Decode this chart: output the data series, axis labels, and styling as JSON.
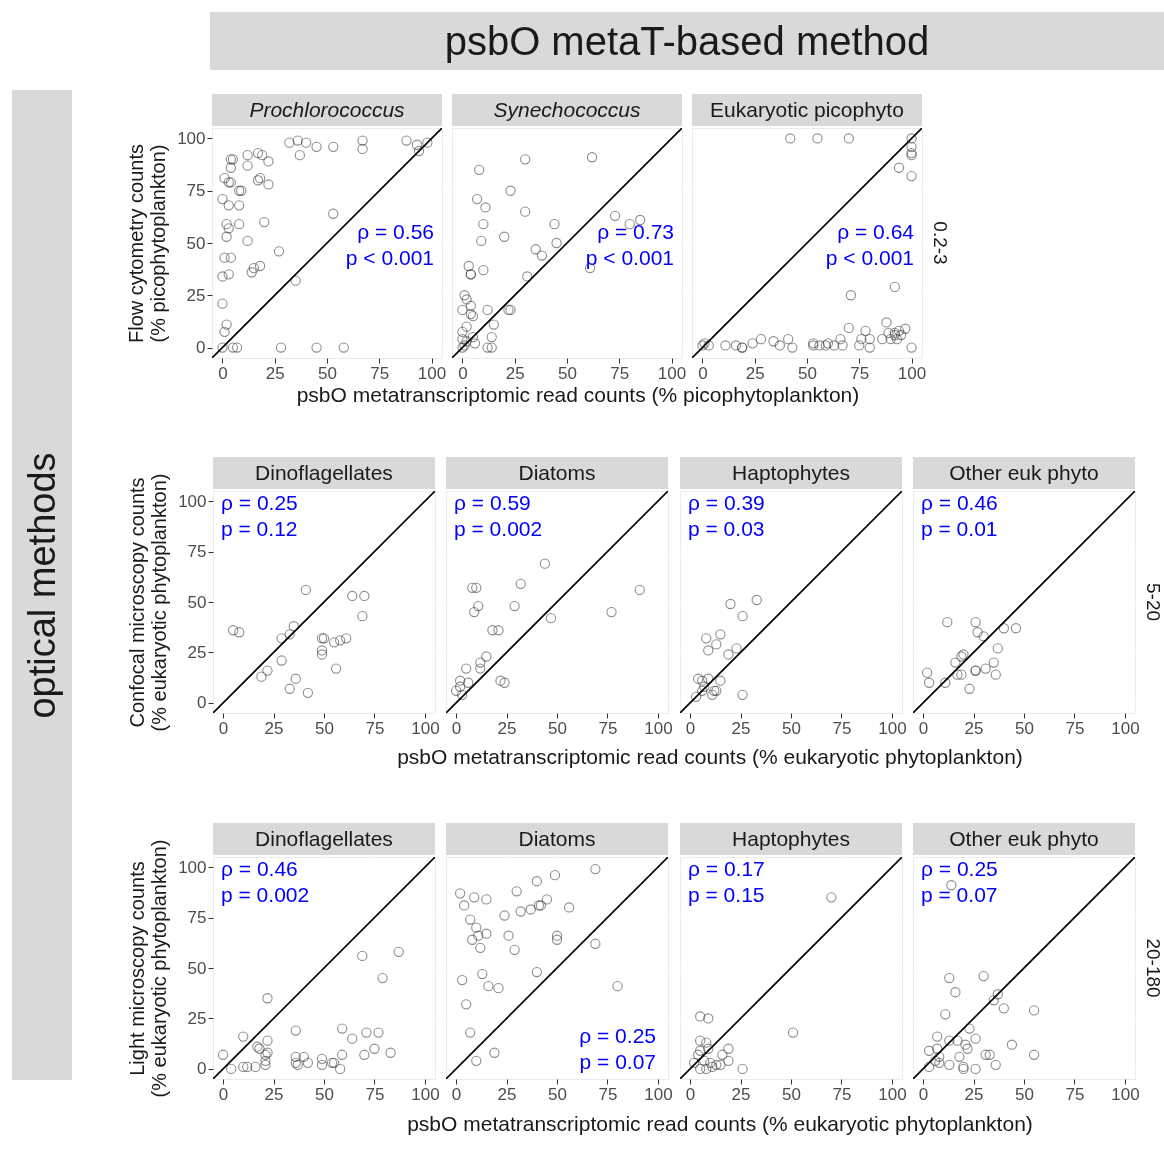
{
  "chart_data": [
    {
      "type": "scatter",
      "title": "Prochlorococcus",
      "ylabel": "Flow cytometry counts\n(% picophytoplankton)",
      "xlim": [
        -5,
        105
      ],
      "ylim": [
        -5,
        105
      ],
      "xticks": [
        0,
        25,
        50,
        75,
        100
      ],
      "yticks": [
        0,
        25,
        50,
        75,
        100
      ],
      "grid": true,
      "annotations": [
        "ρ = 0.56",
        "p < 0.001",
        "psbO metaT-based method"
      ],
      "series": [
        {
          "color": "#333333",
          "x": [
            0,
            5,
            7,
            28,
            45,
            58,
            1,
            2,
            0,
            0,
            3,
            1,
            4,
            14,
            15,
            18,
            27,
            35,
            12,
            20,
            8,
            2,
            3,
            2,
            0,
            3,
            8,
            1,
            3,
            4,
            8,
            9,
            4,
            4,
            5,
            12,
            12,
            17,
            19,
            22,
            17,
            18,
            22,
            32,
            36,
            37,
            40,
            45,
            53,
            53,
            67,
            67,
            88,
            93,
            94,
            98
          ],
          "values": [
            0,
            0,
            0,
            0,
            0,
            0,
            7.5,
            11,
            21,
            34,
            35,
            43,
            43,
            36,
            38,
            39,
            46,
            32,
            51,
            60,
            59,
            59,
            57,
            53,
            71,
            68,
            68,
            81,
            79,
            79,
            75,
            75,
            86,
            90,
            90,
            92,
            87,
            93,
            92,
            89,
            80,
            81,
            78,
            98,
            99,
            92,
            98,
            96,
            96,
            64,
            99,
            95,
            99,
            97,
            94,
            98
          ]
        },
        {
          "type": "line",
          "color": "#000000",
          "x": [
            -5,
            105
          ],
          "values": [
            -5,
            105
          ]
        }
      ]
    },
    {
      "type": "scatter",
      "title": "Synechococcus",
      "xlabel": "psbO metatranscriptomic read counts (% picophytoplankton)",
      "tick_labels": "x",
      "xlim": [
        -5,
        105
      ],
      "ylim": [
        -5,
        105
      ],
      "xticks": [
        0,
        25,
        50,
        75,
        100
      ],
      "yticks": [
        0,
        25,
        50,
        75,
        100
      ],
      "grid": true,
      "annotations": [
        "ρ = 0.73",
        "p < 0.001"
      ],
      "series": [
        {
          "color": "#333333",
          "x": [
            30,
            62,
            8,
            23,
            7,
            11,
            30,
            73,
            80,
            85,
            10,
            44,
            9,
            20,
            45,
            35,
            38,
            3,
            4,
            4,
            10,
            31,
            61,
            22,
            23,
            12,
            1,
            2,
            4,
            0,
            4,
            5,
            2,
            0,
            0,
            2,
            0,
            1,
            5,
            6,
            15,
            14,
            12,
            14
          ],
          "values": [
            90,
            91,
            85,
            75,
            71,
            67,
            65,
            63,
            59,
            61,
            59,
            59,
            51,
            53,
            50,
            47,
            44,
            39,
            35,
            35,
            37,
            34,
            38,
            18,
            18,
            18,
            25,
            23,
            20,
            18,
            16,
            15,
            10,
            7.5,
            4,
            3,
            0,
            1,
            5,
            2,
            11,
            5,
            0,
            0
          ]
        },
        {
          "type": "line",
          "color": "#000000",
          "x": [
            -5,
            105
          ],
          "values": [
            -5,
            105
          ]
        }
      ]
    },
    {
      "type": "scatter",
      "title": "Eukaryotic picophyto",
      "tick_labels": "x",
      "y2label": "0.2-3",
      "xlim": [
        -5,
        105
      ],
      "ylim": [
        -5,
        105
      ],
      "xticks": [
        0,
        25,
        50,
        75,
        100
      ],
      "yticks": [
        0,
        25,
        50,
        75,
        100
      ],
      "grid": true,
      "annotations": [
        "ρ = 0.64",
        "p < 0.001"
      ],
      "series": [
        {
          "color": "#333333",
          "x": [
            42,
            55,
            70,
            100,
            100,
            100,
            100,
            94,
            100,
            92,
            71,
            70,
            0,
            1,
            3,
            11,
            16,
            19,
            19,
            24,
            28,
            34,
            37,
            41,
            43,
            53,
            53,
            56,
            60,
            59,
            63,
            66,
            67,
            75,
            76,
            78,
            80,
            80,
            86,
            88,
            89,
            90,
            92,
            92,
            94,
            95,
            97,
            100,
            93
          ],
          "values": [
            100,
            100,
            100,
            100,
            96,
            93,
            92,
            86,
            82,
            29,
            25,
            9.4,
            1,
            2,
            1,
            1,
            1,
            0,
            0,
            2,
            4,
            3,
            1,
            4,
            0,
            2,
            1,
            1,
            2,
            1,
            1,
            4,
            1,
            1,
            4,
            8,
            4,
            0,
            4,
            12,
            7,
            4,
            6,
            7,
            8,
            6,
            9,
            0,
            4
          ]
        },
        {
          "type": "line",
          "color": "#000000",
          "x": [
            -5,
            105
          ],
          "values": [
            -5,
            105
          ]
        }
      ]
    },
    {
      "type": "scatter",
      "title": "Dinoflagellates",
      "ylabel": "Confocal microscopy counts\n(% eukaryotic phytoplankton)",
      "xlim": [
        -5,
        105
      ],
      "ylim": [
        -5,
        105
      ],
      "xticks": [
        0,
        25,
        50,
        75,
        100
      ],
      "yticks": [
        0,
        25,
        50,
        75,
        100
      ],
      "grid": true,
      "annotations": [
        "ρ = 0.25",
        "p = 0.12",
        "optical methods"
      ],
      "series": [
        {
          "color": "#333333",
          "x": [
            5,
            8,
            41,
            64,
            70,
            69,
            35,
            33,
            29,
            49,
            50,
            55,
            58,
            61,
            49,
            49,
            29,
            56,
            19,
            22,
            36,
            33,
            42
          ],
          "values": [
            36,
            35,
            56,
            53,
            53,
            43,
            38,
            34,
            32,
            32,
            32,
            30,
            31,
            32,
            26,
            24,
            21,
            17,
            13,
            16,
            12,
            7,
            5
          ]
        },
        {
          "type": "line",
          "color": "#000000",
          "x": [
            -5,
            105
          ],
          "values": [
            -5,
            105
          ]
        }
      ]
    },
    {
      "type": "scatter",
      "title": "Diatoms",
      "xlabel": "psbO  metatranscriptomic read counts (% eukaryotic phytoplankton)",
      "tick_labels": "x",
      "xlim": [
        -5,
        105
      ],
      "ylim": [
        -5,
        105
      ],
      "xticks": [
        0,
        25,
        50,
        75,
        100
      ],
      "yticks": [
        0,
        25,
        50,
        75,
        100
      ],
      "grid": true,
      "annotations": [
        "ρ = 0.59",
        "p = 0.002"
      ],
      "series": [
        {
          "color": "#333333",
          "x": [
            44,
            32,
            8,
            10,
            91,
            11,
            9,
            29,
            47,
            77,
            18,
            21,
            15,
            12,
            12,
            5,
            22,
            24,
            2,
            6,
            0,
            3,
            2
          ],
          "values": [
            69,
            59,
            57,
            57,
            56,
            48,
            45,
            48,
            42,
            45,
            36,
            36,
            23,
            20,
            17,
            17,
            11,
            10,
            11,
            10,
            6,
            4,
            8
          ]
        },
        {
          "type": "line",
          "color": "#000000",
          "x": [
            -5,
            105
          ],
          "values": [
            -5,
            105
          ]
        }
      ]
    },
    {
      "type": "scatter",
      "title": "Haptophytes",
      "tick_labels": "x",
      "xlim": [
        -5,
        105
      ],
      "ylim": [
        -5,
        105
      ],
      "xticks": [
        0,
        25,
        50,
        75,
        100
      ],
      "yticks": [
        0,
        25,
        50,
        75,
        100
      ],
      "grid": true,
      "annotations": [
        "ρ = 0.39",
        "p = 0.03"
      ],
      "series": [
        {
          "color": "#333333",
          "x": [
            20,
            33,
            26,
            15,
            8,
            13,
            9,
            23,
            19,
            4,
            6,
            9,
            15,
            7,
            13,
            12,
            3,
            11,
            26,
            6
          ],
          "values": [
            49,
            51,
            43,
            34,
            32,
            29,
            26,
            27,
            24,
            12,
            11,
            12,
            11,
            8,
            6,
            6,
            3,
            4,
            4,
            6
          ]
        },
        {
          "type": "line",
          "color": "#000000",
          "x": [
            -5,
            105
          ],
          "values": [
            -5,
            105
          ]
        }
      ]
    },
    {
      "type": "scatter",
      "title": "Other euk phyto",
      "tick_labels": "x",
      "y2label": "5-20",
      "xlim": [
        -5,
        105
      ],
      "ylim": [
        -5,
        105
      ],
      "xticks": [
        0,
        25,
        50,
        75,
        100
      ],
      "yticks": [
        0,
        25,
        50,
        75,
        100
      ],
      "grid": true,
      "annotations": [
        "ρ = 0.46",
        "p = 0.01"
      ],
      "series": [
        {
          "color": "#333333",
          "x": [
            12,
            26,
            27,
            30,
            40,
            46,
            37,
            20,
            19,
            16,
            35,
            31,
            26,
            26,
            36,
            17,
            19,
            2,
            3,
            11,
            23
          ],
          "values": [
            40,
            40,
            35,
            33,
            37,
            37,
            27,
            24,
            23,
            20,
            20,
            17,
            16,
            16,
            14,
            14,
            14,
            15,
            10,
            10,
            7
          ]
        },
        {
          "type": "line",
          "color": "#000000",
          "x": [
            -5,
            105
          ],
          "values": [
            -5,
            105
          ]
        }
      ]
    },
    {
      "type": "scatter",
      "title": "Dinoflagellates",
      "ylabel": "Light microscopy counts\n(% eukaryotic phytoplankton)",
      "xlim": [
        -5,
        105
      ],
      "ylim": [
        -5,
        105
      ],
      "xticks": [
        0,
        25,
        50,
        75,
        100
      ],
      "yticks": [
        0,
        25,
        50,
        75,
        100
      ],
      "grid": true,
      "annotations": [
        "ρ = 0.46",
        "p = 0.002"
      ],
      "series": [
        {
          "color": "#333333",
          "x": [
            22,
            69,
            87,
            79,
            36,
            59,
            64,
            71,
            77,
            75,
            70,
            83,
            10,
            17,
            18,
            22,
            22,
            21,
            21,
            21,
            0,
            4,
            10,
            12,
            16,
            36,
            40,
            36,
            37,
            42,
            49,
            49,
            54,
            55,
            58,
            59
          ],
          "values": [
            35,
            56,
            58,
            45,
            19,
            20,
            15,
            18,
            18,
            10,
            7,
            8,
            16,
            11,
            10,
            14,
            8,
            7,
            2,
            4,
            7,
            0,
            1,
            1,
            1,
            6,
            6,
            3,
            2,
            3,
            5,
            2,
            3,
            3,
            0,
            7
          ]
        },
        {
          "type": "line",
          "color": "#000000",
          "x": [
            -5,
            105
          ],
          "values": [
            -5,
            105
          ]
        }
      ]
    },
    {
      "type": "scatter",
      "title": "Diatoms",
      "xlabel": "psbO  metatranscriptomic read counts (% eukaryotic phytoplankton)",
      "tick_labels": "x",
      "xlim": [
        -5,
        105
      ],
      "ylim": [
        -5,
        105
      ],
      "xticks": [
        0,
        25,
        50,
        75,
        100
      ],
      "yticks": [
        0,
        25,
        50,
        75,
        100
      ],
      "grid": true,
      "annotations": [
        "ρ = 0.25",
        "p = 0.07"
      ],
      "series": [
        {
          "color": "#333333",
          "x": [
            69,
            2,
            9,
            4,
            15,
            30,
            40,
            49,
            45,
            41,
            42,
            37,
            32,
            56,
            24,
            7,
            10,
            11,
            15,
            8,
            12,
            26,
            29,
            50,
            50,
            69,
            13,
            40,
            3,
            16,
            21,
            80,
            5,
            7,
            19,
            10
          ],
          "values": [
            99,
            87,
            85,
            81,
            84,
            88,
            93,
            96,
            84,
            81,
            81,
            79,
            78,
            80,
            76,
            74,
            70,
            66,
            67,
            64,
            60,
            66,
            59,
            66,
            64,
            62,
            47,
            48,
            44,
            41,
            40,
            41,
            32,
            18,
            8,
            4
          ]
        },
        {
          "type": "line",
          "color": "#000000",
          "x": [
            -5,
            105
          ],
          "values": [
            -5,
            105
          ]
        }
      ]
    },
    {
      "type": "scatter",
      "title": "Haptophytes",
      "tick_labels": "x",
      "xlim": [
        -5,
        105
      ],
      "ylim": [
        -5,
        105
      ],
      "xticks": [
        0,
        25,
        50,
        75,
        100
      ],
      "yticks": [
        0,
        25,
        50,
        75,
        100
      ],
      "grid": true,
      "annotations": [
        "ρ = 0.17",
        "p = 0.15"
      ],
      "series": [
        {
          "color": "#333333",
          "x": [
            70,
            5,
            9,
            51,
            26,
            19,
            16,
            19,
            15,
            5,
            8,
            4,
            5,
            9,
            2,
            7,
            10,
            11,
            5,
            8,
            13
          ],
          "values": [
            85,
            26,
            25,
            18,
            0,
            10,
            7,
            4,
            2,
            14,
            13,
            7,
            9,
            10,
            3,
            4,
            3,
            1,
            0,
            0,
            2
          ]
        },
        {
          "type": "line",
          "color": "#000000",
          "x": [
            -5,
            105
          ],
          "values": [
            -5,
            105
          ]
        }
      ]
    },
    {
      "type": "scatter",
      "title": "Other euk phyto",
      "y2label": "20-180",
      "tick_labels": "x",
      "xlim": [
        -5,
        105
      ],
      "ylim": [
        -5,
        105
      ],
      "xticks": [
        0,
        25,
        50,
        75,
        100
      ],
      "yticks": [
        0,
        25,
        50,
        75,
        100
      ],
      "grid": true,
      "annotations": [
        "ρ = 0.25",
        "p = 0.07"
      ],
      "series": [
        {
          "color": "#333333",
          "x": [
            14,
            13,
            30,
            16,
            37,
            35,
            40,
            11,
            55,
            23,
            26,
            22,
            21,
            7,
            13,
            17,
            3,
            7,
            8,
            8,
            3,
            13,
            18,
            20,
            20,
            26,
            31,
            33,
            36,
            44,
            55,
            6
          ],
          "values": [
            91,
            45,
            46,
            38,
            37,
            34,
            30,
            27,
            29,
            20,
            15,
            10,
            12,
            16,
            14,
            14,
            9,
            10,
            6,
            3,
            1,
            2,
            6,
            1,
            0,
            0,
            7,
            7,
            2,
            12,
            7,
            4
          ]
        },
        {
          "type": "line",
          "color": "#000000",
          "x": [
            -5,
            105
          ],
          "values": [
            -5,
            105
          ]
        }
      ]
    }
  ]
}
